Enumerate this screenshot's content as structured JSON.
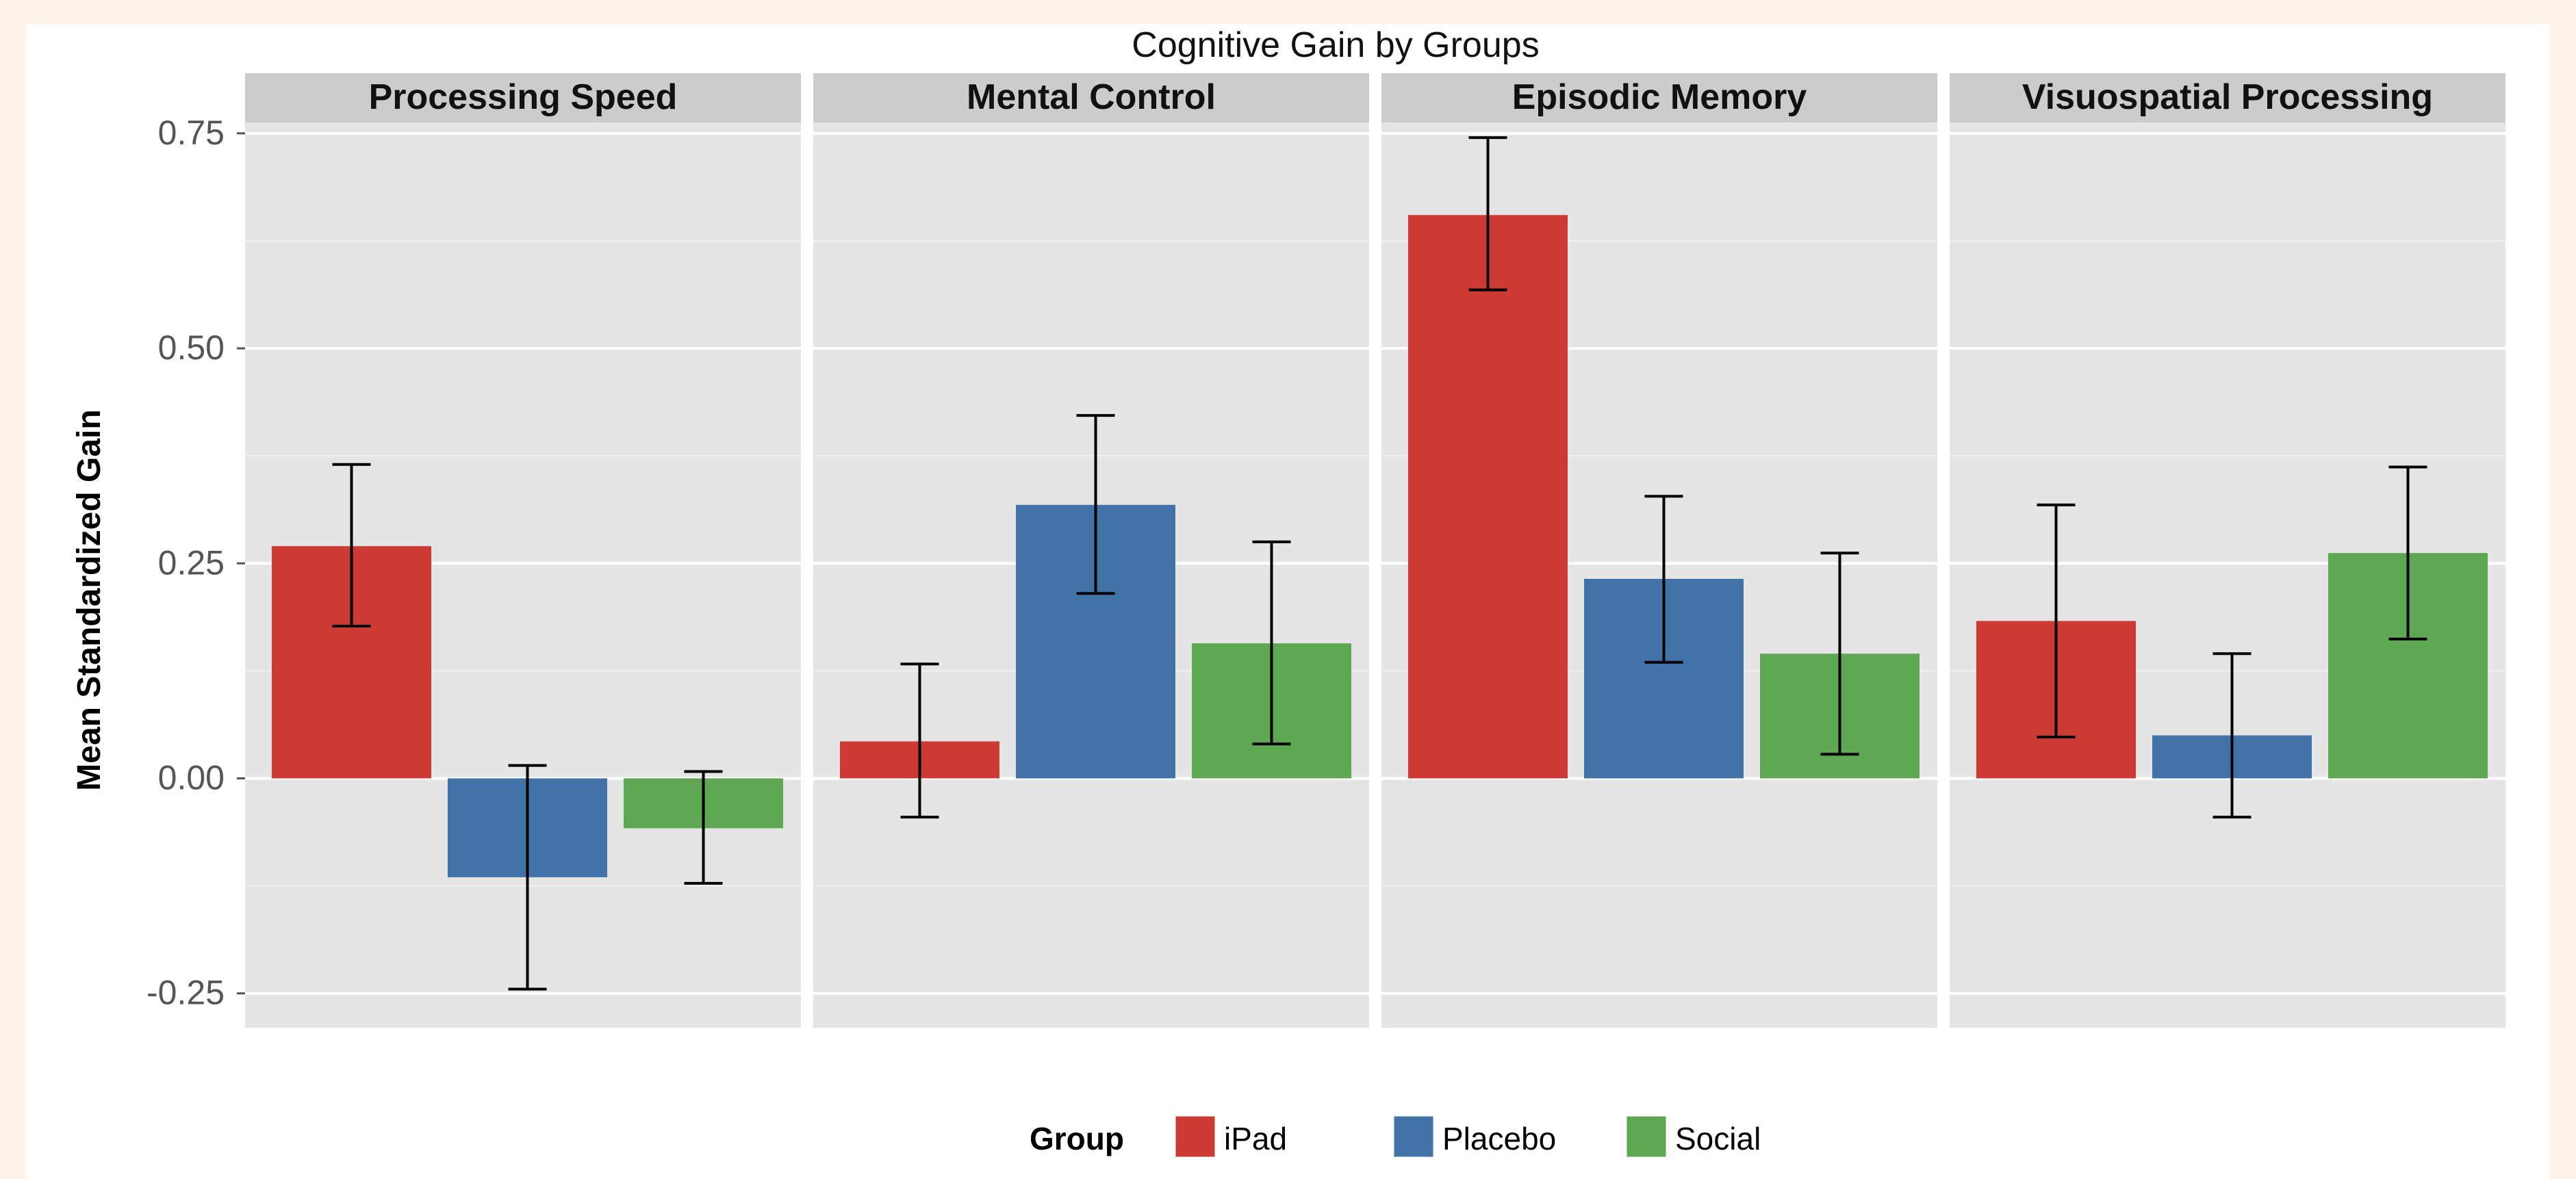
{
  "chart_data": {
    "type": "bar",
    "title": "Cognitive Gain by Groups",
    "xlabel": "",
    "ylabel": "Mean Standardized Gain",
    "ylim": [
      -0.29,
      0.8
    ],
    "yticks": [
      -0.25,
      0.0,
      0.25,
      0.5,
      0.75
    ],
    "ytick_labels": [
      "-0.25",
      "0.00",
      "0.25",
      "0.50",
      "0.75"
    ],
    "grid": true,
    "legend": {
      "title": "Group",
      "position": "bottom"
    },
    "groups": [
      "iPad",
      "Placebo",
      "Social"
    ],
    "colors": {
      "iPad": "#cc3a33",
      "Placebo": "#4273a8",
      "Social": "#5ea753"
    },
    "facets": [
      {
        "name": "Processing Speed",
        "values": [
          0.27,
          -0.115,
          -0.058
        ],
        "errors": [
          [
            0.177,
            0.365
          ],
          [
            -0.245,
            0.015
          ],
          [
            -0.122,
            0.008
          ]
        ]
      },
      {
        "name": "Mental Control",
        "values": [
          0.043,
          0.318,
          0.157
        ],
        "errors": [
          [
            -0.045,
            0.133
          ],
          [
            0.215,
            0.422
          ],
          [
            0.04,
            0.275
          ]
        ]
      },
      {
        "name": "Episodic Memory",
        "values": [
          0.655,
          0.232,
          0.145
        ],
        "errors": [
          [
            0.568,
            0.745
          ],
          [
            0.135,
            0.328
          ],
          [
            0.028,
            0.262
          ]
        ]
      },
      {
        "name": "Visuospatial Processing",
        "values": [
          0.183,
          0.05,
          0.262
        ],
        "errors": [
          [
            0.048,
            0.318
          ],
          [
            -0.045,
            0.145
          ],
          [
            0.162,
            0.362
          ]
        ]
      }
    ]
  }
}
